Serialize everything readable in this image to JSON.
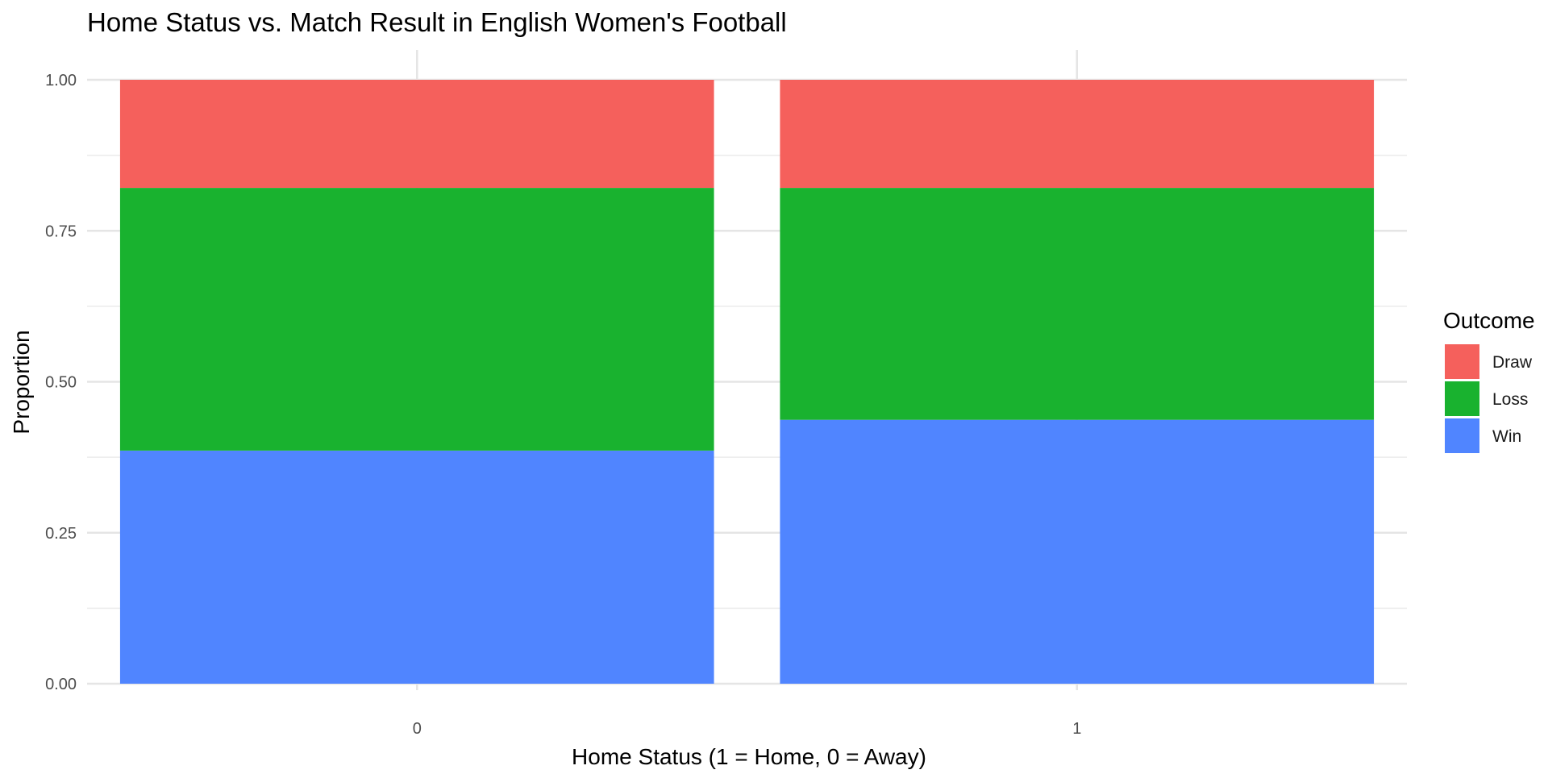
{
  "chart_data": {
    "type": "bar",
    "stacked": true,
    "title": "Home Status vs. Match Result in English Women's Football",
    "xlabel": "Home Status (1 = Home, 0 = Away)",
    "ylabel": "Proportion",
    "categories": [
      "0",
      "1"
    ],
    "ylim": [
      0,
      1
    ],
    "yticks": [
      "0.00",
      "0.25",
      "0.50",
      "0.75",
      "1.00"
    ],
    "grid": true,
    "legend": {
      "title": "Outcome",
      "position": "right"
    },
    "series": [
      {
        "name": "Win",
        "color": "#5085ff",
        "values": [
          0.386,
          0.437
        ]
      },
      {
        "name": "Loss",
        "color": "#19b22f",
        "values": [
          0.435,
          0.384
        ]
      },
      {
        "name": "Draw",
        "color": "#f5605c",
        "values": [
          0.179,
          0.179
        ]
      }
    ],
    "legend_order": [
      "Draw",
      "Loss",
      "Win"
    ]
  }
}
